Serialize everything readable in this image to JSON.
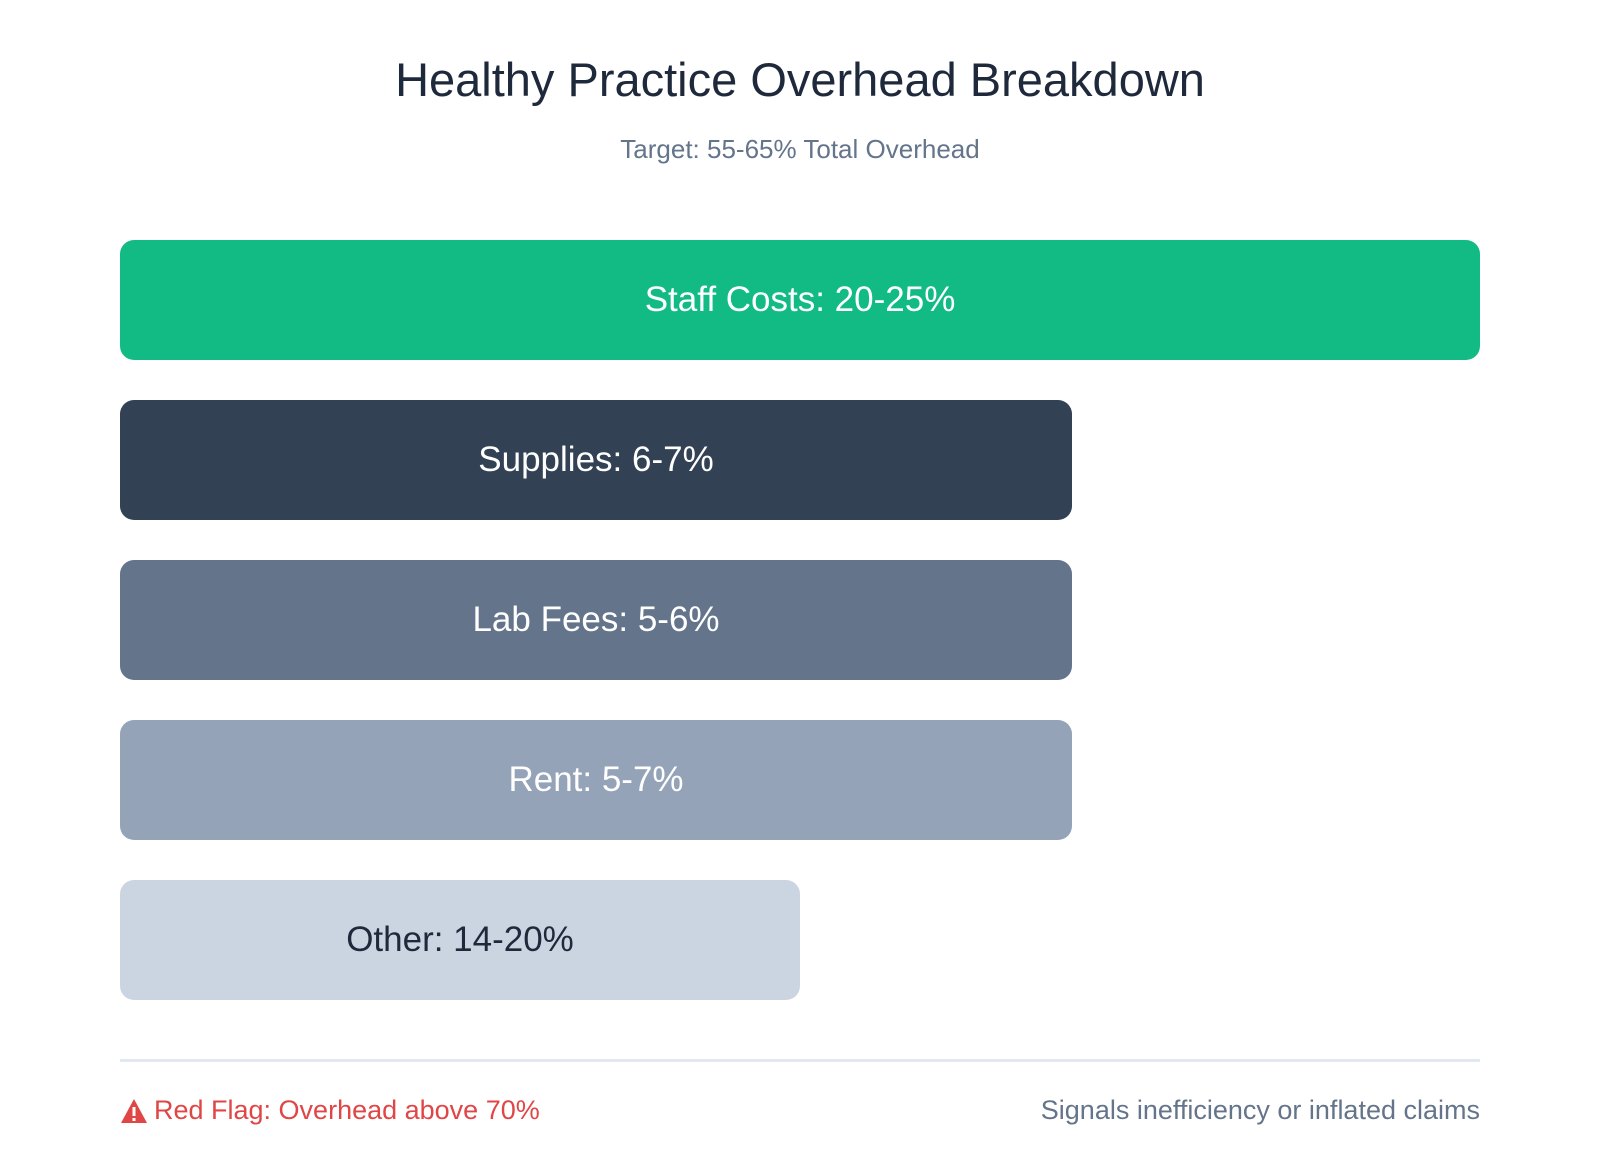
{
  "header": {
    "title": "Healthy Practice Overhead Breakdown",
    "subtitle": "Target: 55-65% Total Overhead"
  },
  "items": [
    {
      "label": "Staff Costs: 20-25%",
      "color": "#13bb84"
    },
    {
      "label": "Supplies: 6-7%",
      "color": "#334155"
    },
    {
      "label": "Lab Fees: 5-6%",
      "color": "#64748b"
    },
    {
      "label": "Rent: 5-7%",
      "color": "#94a3b8"
    },
    {
      "label": "Other: 14-20%",
      "color": "#cbd5e1"
    }
  ],
  "footer": {
    "warning_icon": "warning-triangle-icon",
    "warning": "Red Flag: Overhead above 70%",
    "warning_color": "#e04646",
    "note": "Signals inefficiency or inflated claims"
  }
}
